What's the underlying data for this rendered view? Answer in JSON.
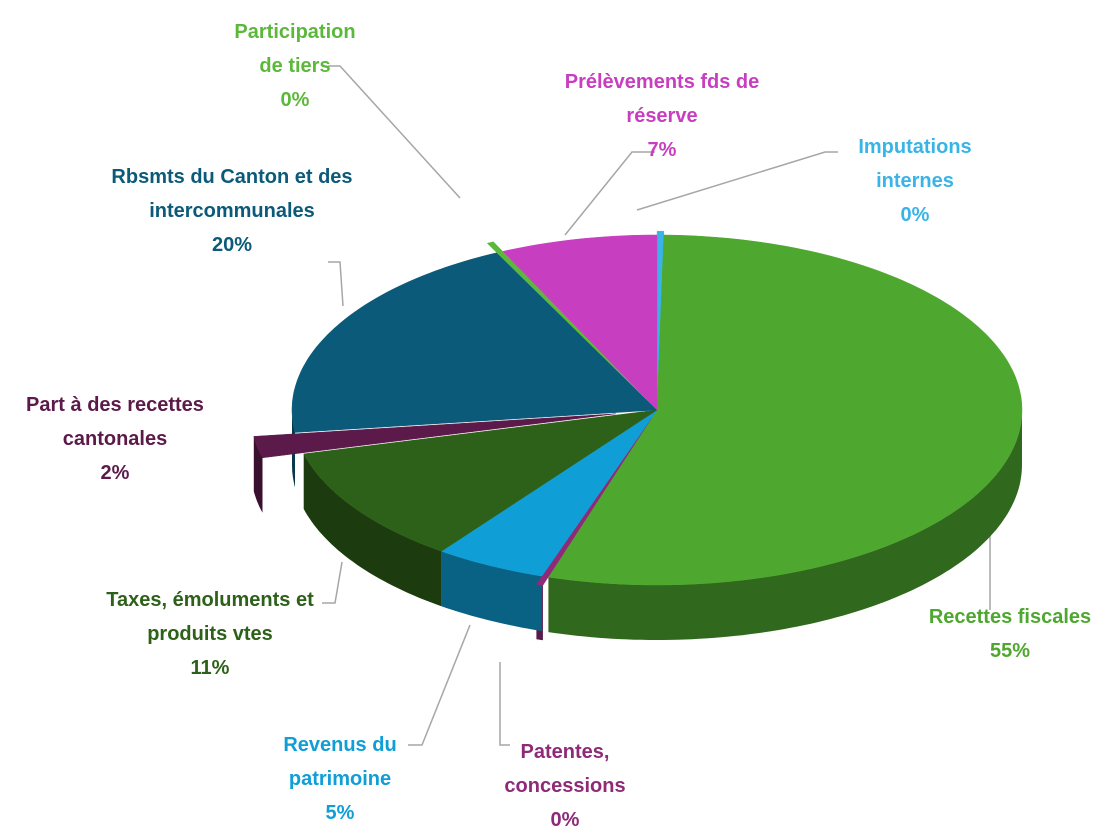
{
  "chart_data": {
    "type": "pie",
    "categories": [
      "Imputations internes",
      "Recettes fiscales",
      "Patentes, concessions",
      "Revenus du patrimoine",
      "Taxes, émoluments et produits vtes",
      "Part à des recettes cantonales",
      "Rbsmts du Canton et des intercommunales",
      "Participation de tiers",
      "Prélèvements fds de réserve"
    ],
    "values": [
      0.3,
      55,
      0.3,
      5,
      11,
      2,
      20,
      0.3,
      7
    ],
    "value_labels": [
      "0%",
      "55%",
      "0%",
      "5%",
      "11%",
      "2%",
      "20%",
      "0%",
      "7%"
    ],
    "colors": [
      "#3ab4e6",
      "#4ea72e",
      "#8e2a78",
      "#0f9ed5",
      "#2d6119",
      "#5c1a4a",
      "#0b5a7a",
      "#5cb83a",
      "#c83ec0"
    ]
  }
}
